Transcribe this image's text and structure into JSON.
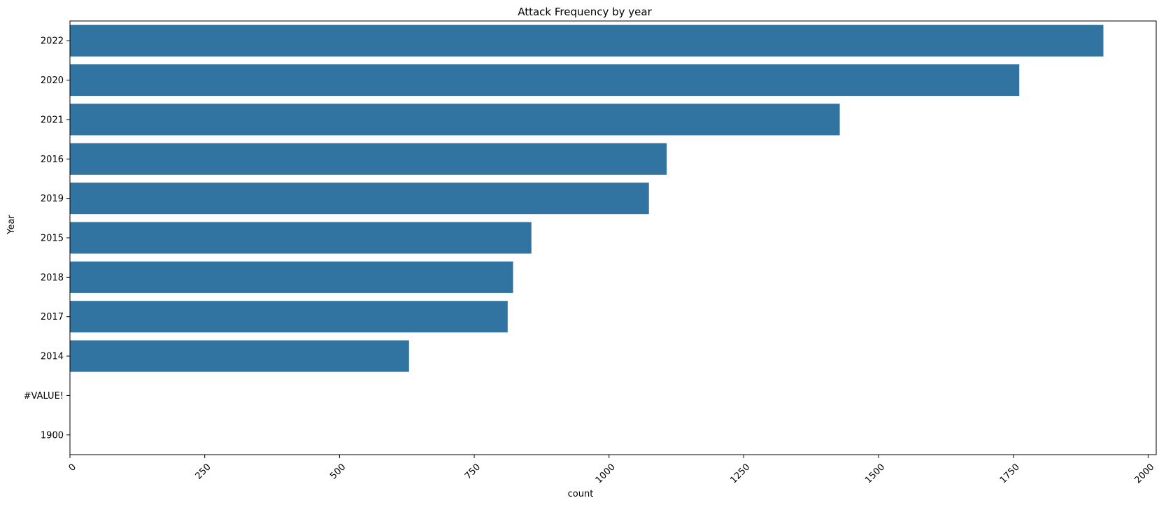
{
  "chart_data": {
    "type": "bar",
    "orientation": "horizontal",
    "title": "Attack Frequency by year",
    "xlabel": "count",
    "ylabel": "Year",
    "categories": [
      "2022",
      "2020",
      "2021",
      "2016",
      "2019",
      "2015",
      "2018",
      "2017",
      "2014",
      "#VALUE!",
      "1900"
    ],
    "values": [
      1917,
      1761,
      1428,
      1107,
      1074,
      856,
      822,
      812,
      629,
      0,
      0
    ],
    "xlim": [
      0,
      2015
    ],
    "xticks": [
      "0",
      "250",
      "500",
      "750",
      "1000",
      "1250",
      "1500",
      "1750",
      "2000"
    ],
    "xtick_rotation": 45,
    "bar_color": "#3274a1",
    "grid": false,
    "legend": "none"
  }
}
